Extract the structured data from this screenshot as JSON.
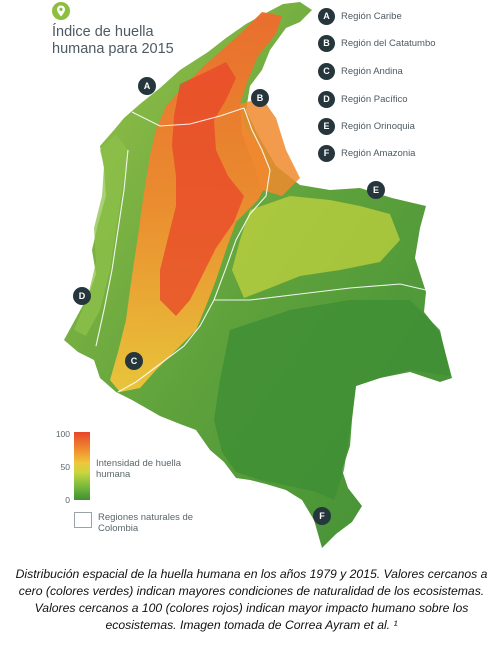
{
  "map": {
    "title": "Índice de huella humana para 2015",
    "legend": [
      {
        "key": "A",
        "label": "Región Caribe"
      },
      {
        "key": "B",
        "label": "Región del Catatumbo"
      },
      {
        "key": "C",
        "label": "Región Andina"
      },
      {
        "key": "D",
        "label": "Región Pacífico"
      },
      {
        "key": "E",
        "label": "Región Orinoquia"
      },
      {
        "key": "F",
        "label": "Región Amazonia"
      }
    ],
    "markers": [
      "A",
      "B",
      "C",
      "D",
      "E",
      "F"
    ],
    "scale": {
      "ticks": [
        "100",
        "50",
        "0"
      ],
      "label": "Intensidad de huella humana",
      "colors": [
        "#e8452a",
        "#f08a2e",
        "#efc63a",
        "#c7d63e",
        "#7fbd3d",
        "#3f8f35"
      ]
    },
    "regions_label": "Regiones naturales de Colombia"
  },
  "caption": "Distribución espacial de la huella humana en los años 1979 y 2015. Valores cercanos a cero (colores verdes) indican mayores condiciones de naturalidad de los ecosistemas. Valores cercanos a 100 (colores rojos) indican mayor impacto humano sobre los ecosistemas. Imagen tomada de Correa Ayram et al. ¹"
}
